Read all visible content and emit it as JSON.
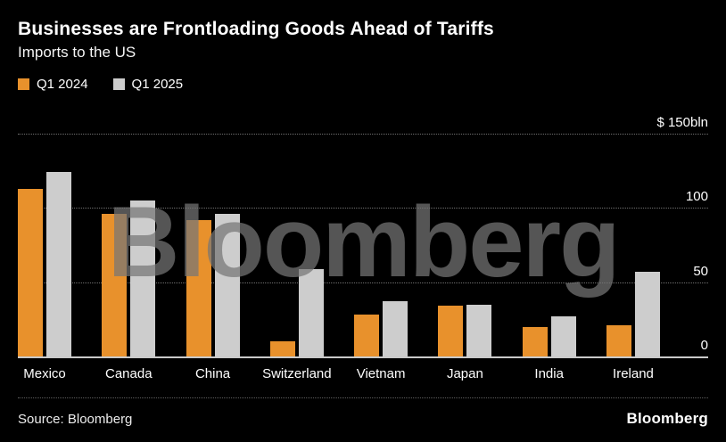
{
  "header": {
    "title": "Businesses are Frontloading Goods Ahead of Tariffs",
    "subtitle": "Imports to the US"
  },
  "legend": [
    {
      "label": "Q1 2024",
      "color": "#E8912C"
    },
    {
      "label": "Q1 2025",
      "color": "#CDCDCD"
    }
  ],
  "watermark": "Bloomberg",
  "footer": {
    "source": "Source: Bloomberg",
    "logo": "Bloomberg"
  },
  "chart_data": {
    "type": "bar",
    "title": "Businesses are Frontloading Goods Ahead of Tariffs",
    "subtitle": "Imports to the US",
    "unit": "$ bln",
    "categories": [
      "Mexico",
      "Canada",
      "China",
      "Switzerland",
      "Vietnam",
      "Japan",
      "India",
      "Ireland"
    ],
    "series": [
      {
        "name": "Q1 2024",
        "color": "#E8912C",
        "values": [
          113,
          96,
          92,
          10,
          28,
          34,
          20,
          21
        ]
      },
      {
        "name": "Q1 2025",
        "color": "#CDCDCD",
        "values": [
          124,
          105,
          96,
          59,
          37,
          35,
          27,
          57
        ]
      }
    ],
    "ylim": [
      0,
      150
    ],
    "yticks": [
      0,
      50,
      100,
      150
    ],
    "ytick_labels": [
      "0",
      "50",
      "100",
      "$ 150bln"
    ],
    "grid": "dotted-horizontal",
    "legend_position": "top-left"
  }
}
